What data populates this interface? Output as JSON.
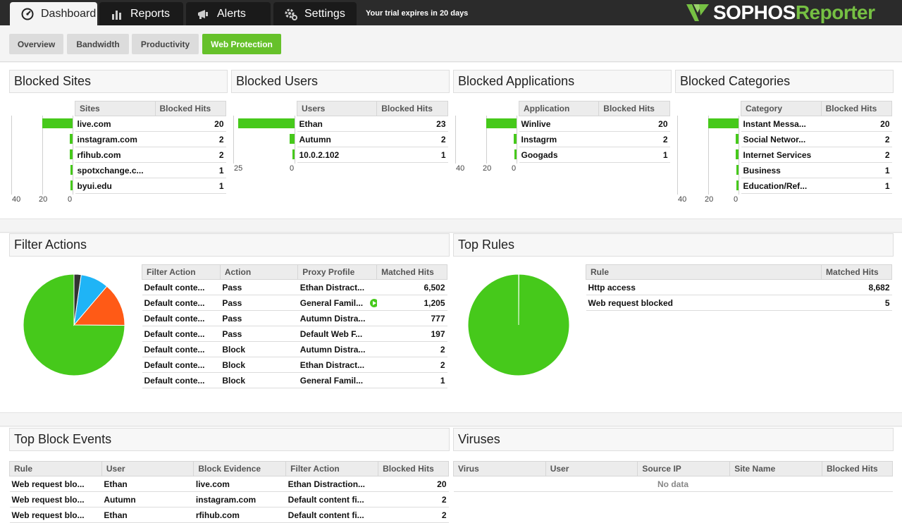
{
  "nav": {
    "tabs": [
      {
        "label": "Dashboard",
        "icon": "dashboard-gauge-icon"
      },
      {
        "label": "Reports",
        "icon": "bar-chart-icon"
      },
      {
        "label": "Alerts",
        "icon": "megaphone-icon"
      },
      {
        "label": "Settings",
        "icon": "gears-icon"
      }
    ],
    "trial": "Your trial expires in 20 days",
    "logo_part1": "SOPHOS",
    "logo_part2": "Reporter"
  },
  "subtabs": [
    "Overview",
    "Bandwidth",
    "Productivity",
    "Web Protection"
  ],
  "colors": {
    "accent": "#66c12a",
    "bar": "#46c91b",
    "pie_green": "#46c91b",
    "pie_orange": "#ff5a16",
    "pie_blue": "#1fb4f6",
    "pie_dark": "#333333"
  },
  "blocked_sites": {
    "title": "Blocked Sites",
    "headers": [
      "Sites",
      "Blocked Hits"
    ],
    "rows": [
      [
        "live.com",
        "20"
      ],
      [
        "instagram.com",
        "2"
      ],
      [
        "rfihub.com",
        "2"
      ],
      [
        "spotxchange.c...",
        "1"
      ],
      [
        "byui.edu",
        "1"
      ]
    ],
    "values": [
      20,
      2,
      2,
      1,
      1
    ],
    "axis": [
      "40",
      "20",
      "0"
    ]
  },
  "blocked_users": {
    "title": "Blocked Users",
    "headers": [
      "Users",
      "Blocked Hits"
    ],
    "rows": [
      [
        "Ethan",
        "23"
      ],
      [
        "Autumn",
        "2"
      ],
      [
        "10.0.2.102",
        "1"
      ]
    ],
    "values": [
      23,
      2,
      1
    ],
    "axis": [
      "25",
      "0"
    ]
  },
  "blocked_apps": {
    "title": "Blocked Applications",
    "headers": [
      "Application",
      "Blocked Hits"
    ],
    "rows": [
      [
        "Winlive",
        "20"
      ],
      [
        "Instagrm",
        "2"
      ],
      [
        "Googads",
        "1"
      ]
    ],
    "values": [
      20,
      2,
      1
    ],
    "axis": [
      "40",
      "20",
      "0"
    ]
  },
  "blocked_categories": {
    "title": "Blocked Categories",
    "headers": [
      "Category",
      "Blocked Hits"
    ],
    "rows": [
      [
        "Instant Messa...",
        "20"
      ],
      [
        "Social Networ...",
        "2"
      ],
      [
        "Internet Services",
        "2"
      ],
      [
        "Business",
        "1"
      ],
      [
        "Education/Ref...",
        "1"
      ]
    ],
    "values": [
      20,
      2,
      2,
      1,
      1
    ],
    "axis": [
      "40",
      "20",
      "0"
    ]
  },
  "filter_actions": {
    "title": "Filter Actions",
    "headers": [
      "Filter Action",
      "Action",
      "Proxy Profile",
      "Matched Hits"
    ],
    "rows": [
      [
        "Default conte...",
        "Pass",
        "Ethan Distract...",
        "6,502"
      ],
      [
        "Default conte...",
        "Pass",
        "General Famil...",
        "1,205"
      ],
      [
        "Default conte...",
        "Pass",
        "Autumn Distra...",
        "777"
      ],
      [
        "Default conte...",
        "Pass",
        "Default Web F...",
        "197"
      ],
      [
        "Default conte...",
        "Block",
        "Autumn Distra...",
        "2"
      ],
      [
        "Default conte...",
        "Block",
        "Ethan Distract...",
        "2"
      ],
      [
        "Default conte...",
        "Block",
        "General Famil...",
        "1"
      ]
    ],
    "pie": [
      {
        "value": 6502,
        "color": "#46c91b"
      },
      {
        "value": 1205,
        "color": "#ff5a16"
      },
      {
        "value": 777,
        "color": "#1fb4f6"
      },
      {
        "value": 197,
        "color": "#333333"
      }
    ]
  },
  "top_rules": {
    "title": "Top Rules",
    "headers": [
      "Rule",
      "Matched Hits"
    ],
    "rows": [
      [
        "Http access",
        "8,682"
      ],
      [
        "Web request blocked",
        "5"
      ]
    ],
    "pie": [
      {
        "value": 8682,
        "color": "#46c91b"
      },
      {
        "value": 5,
        "color": "#333333"
      }
    ]
  },
  "top_block_events": {
    "title": "Top Block Events",
    "headers": [
      "Rule",
      "User",
      "Block Evidence",
      "Filter Action",
      "Blocked Hits"
    ],
    "rows": [
      [
        "Web request blo...",
        "Ethan",
        "live.com",
        "Ethan Distraction...",
        "20"
      ],
      [
        "Web request blo...",
        "Autumn",
        "instagram.com",
        "Default content fi...",
        "2"
      ],
      [
        "Web request blo...",
        "Ethan",
        "rfihub.com",
        "Default content fi...",
        "2"
      ]
    ]
  },
  "viruses": {
    "title": "Viruses",
    "headers": [
      "Virus",
      "User",
      "Source IP",
      "Site Name",
      "Blocked Hits"
    ],
    "empty": "No data"
  }
}
